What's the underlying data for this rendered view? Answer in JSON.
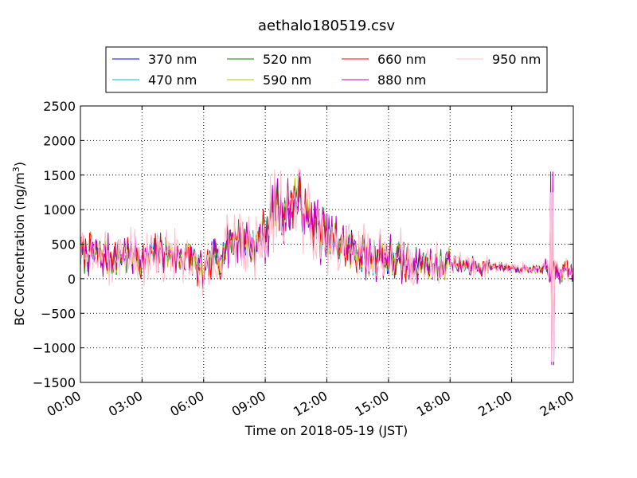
{
  "chart_data": {
    "type": "line",
    "title": "aethalo180519.csv",
    "xlabel": "Time on 2018-05-19 (JST)",
    "ylabel_main": "BC Concentration (ng/m",
    "ylabel_sup": "3",
    "ylabel_close": ")",
    "xlim": [
      0,
      24
    ],
    "ylim": [
      -1500,
      2500
    ],
    "xticks": [
      0,
      3,
      6,
      9,
      12,
      15,
      18,
      21,
      24
    ],
    "xtick_labels": [
      "00:00",
      "03:00",
      "06:00",
      "09:00",
      "12:00",
      "15:00",
      "18:00",
      "21:00",
      "24:00"
    ],
    "yticks": [
      -1500,
      -1000,
      -500,
      0,
      500,
      1000,
      1500,
      2000,
      2500
    ],
    "ytick_labels": [
      "−1500",
      "−1000",
      "−500",
      "0",
      "500",
      "1000",
      "1500",
      "2000",
      "2500"
    ],
    "grid": true,
    "legend_position": "top",
    "series": [
      {
        "name": "370 nm",
        "color": "#0000ff"
      },
      {
        "name": "470 nm",
        "color": "#00bfbf"
      },
      {
        "name": "520 nm",
        "color": "#008000"
      },
      {
        "name": "590 nm",
        "color": "#bfbf00"
      },
      {
        "name": "660 nm",
        "color": "#ff0000"
      },
      {
        "name": "880 nm",
        "color": "#bf00bf"
      },
      {
        "name": "950 nm",
        "color": "#ffc0cb"
      }
    ],
    "base_profile": {
      "x": [
        0,
        0.5,
        1,
        1.5,
        2,
        2.5,
        3,
        3.5,
        4,
        4.5,
        5,
        5.5,
        6,
        6.5,
        7,
        7.5,
        8,
        8.5,
        9,
        9.5,
        10,
        10.5,
        11,
        11.5,
        12,
        12.5,
        13,
        13.5,
        14,
        14.5,
        15,
        15.5,
        16,
        16.5,
        17,
        17.5,
        18,
        18.5,
        19,
        19.5,
        20,
        20.5,
        21,
        21.5,
        22,
        22.5,
        23,
        23.5,
        24
      ],
      "y": [
        350,
        380,
        330,
        300,
        320,
        350,
        280,
        340,
        400,
        330,
        300,
        280,
        50,
        250,
        450,
        600,
        550,
        450,
        700,
        1050,
        1000,
        1200,
        900,
        750,
        600,
        550,
        450,
        400,
        300,
        350,
        300,
        250,
        230,
        220,
        210,
        200,
        220,
        200,
        180,
        170,
        180,
        170,
        160,
        150,
        140,
        120,
        100,
        90,
        100
      ]
    },
    "sample_interval_minutes": 3
  }
}
